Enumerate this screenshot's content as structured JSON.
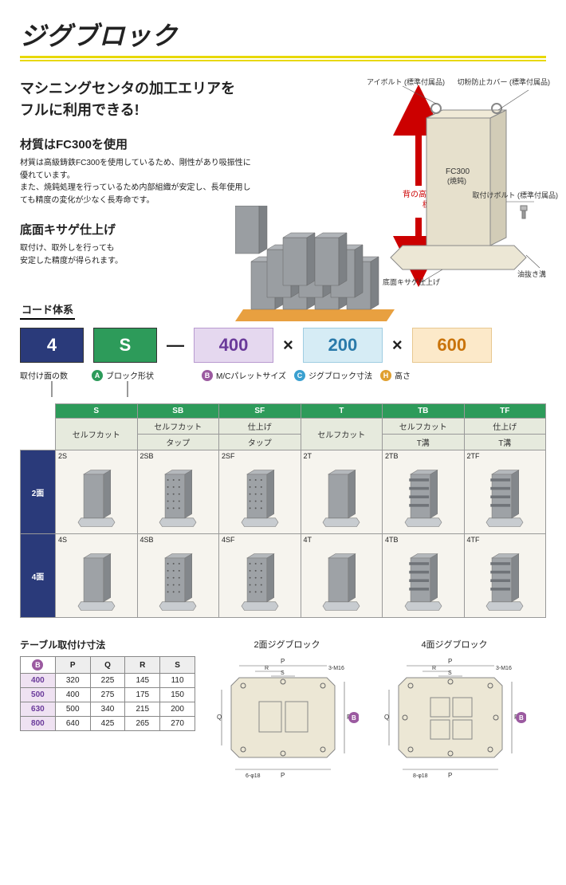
{
  "title": "ジグブロック",
  "headline": {
    "a": "マシニングセンタ",
    "b": "の",
    "c": "加工エリア",
    "d": "を",
    "e": "フル",
    "f": "に",
    "g": "利用",
    "h": "できる!"
  },
  "section1_h": "材質はFC300を使用",
  "section1_body": "材質は高級鋳鉄FC300を使用しているため、剛性があり吸振性に優れています。\nまた、焼鈍処理を行っているため内部組織が安定し、長年使用しても精度の変化が少なく長寿命です。",
  "section2_h": "底面キサゲ仕上げ",
  "section2_body": "取付け、取外しを行っても\n安定した精度が得られます。",
  "red_label": "背の高いサイズを\n標準化",
  "iso_labels": {
    "eyebolt": "アイボルト\n(標準付属品)",
    "dustcover": "切粉防止カバー\n(標準付属品)",
    "body": "FC300\n(焼鈍)",
    "mountbolt": "取付けボルト\n(標準付属品)",
    "oil": "油抜き溝",
    "bottom": "底面キサゲ仕上げ"
  },
  "code_sys_h": "コード体系",
  "code_boxes": {
    "n": "4",
    "s": "S",
    "b1": "400",
    "b2": "200",
    "b3": "600"
  },
  "legend": {
    "count": "取付け面の数",
    "A": "ブロック形状",
    "B": "M/Cパレットサイズ",
    "C": "ジグブロック寸法",
    "H": "高さ"
  },
  "cmp": {
    "cols": [
      "S",
      "SB",
      "SF",
      "T",
      "TB",
      "TF"
    ],
    "sub1": [
      "セルフカット",
      "セルフカット",
      "仕上げ",
      "セルフカット",
      "セルフカット",
      "仕上げ"
    ],
    "sub2": [
      "",
      "タップ",
      "タップ",
      "",
      "T溝",
      "T溝"
    ],
    "rows": [
      "2面",
      "4面"
    ],
    "codes": [
      [
        "2S",
        "2SB",
        "2SF",
        "2T",
        "2TB",
        "2TF"
      ],
      [
        "4S",
        "4SB",
        "4SF",
        "4T",
        "4TB",
        "4TF"
      ]
    ]
  },
  "dim_h": "テーブル取付け寸法",
  "dim_cols": [
    "B",
    "P",
    "Q",
    "R",
    "S"
  ],
  "dim_rows": [
    [
      "400",
      "320",
      "225",
      "145",
      "110"
    ],
    [
      "500",
      "400",
      "275",
      "175",
      "150"
    ],
    [
      "630",
      "500",
      "340",
      "215",
      "200"
    ],
    [
      "800",
      "640",
      "425",
      "265",
      "270"
    ]
  ],
  "plan_h2": "2面ジグブロック",
  "plan_h4": "4面ジグブロック",
  "plan_notes": {
    "m16": "3-M16",
    "d18_6": "6-φ18",
    "d18_8": "8-φ18",
    "P": "P",
    "Q": "Q",
    "R": "R",
    "S": "S",
    "B_badge": "B"
  },
  "colors": {
    "navy": "#2a3a7a",
    "green": "#2d9b5a",
    "purple": "#9b5aa0",
    "blue": "#3aa0d0",
    "orange": "#e0a030",
    "red": "#c00"
  }
}
